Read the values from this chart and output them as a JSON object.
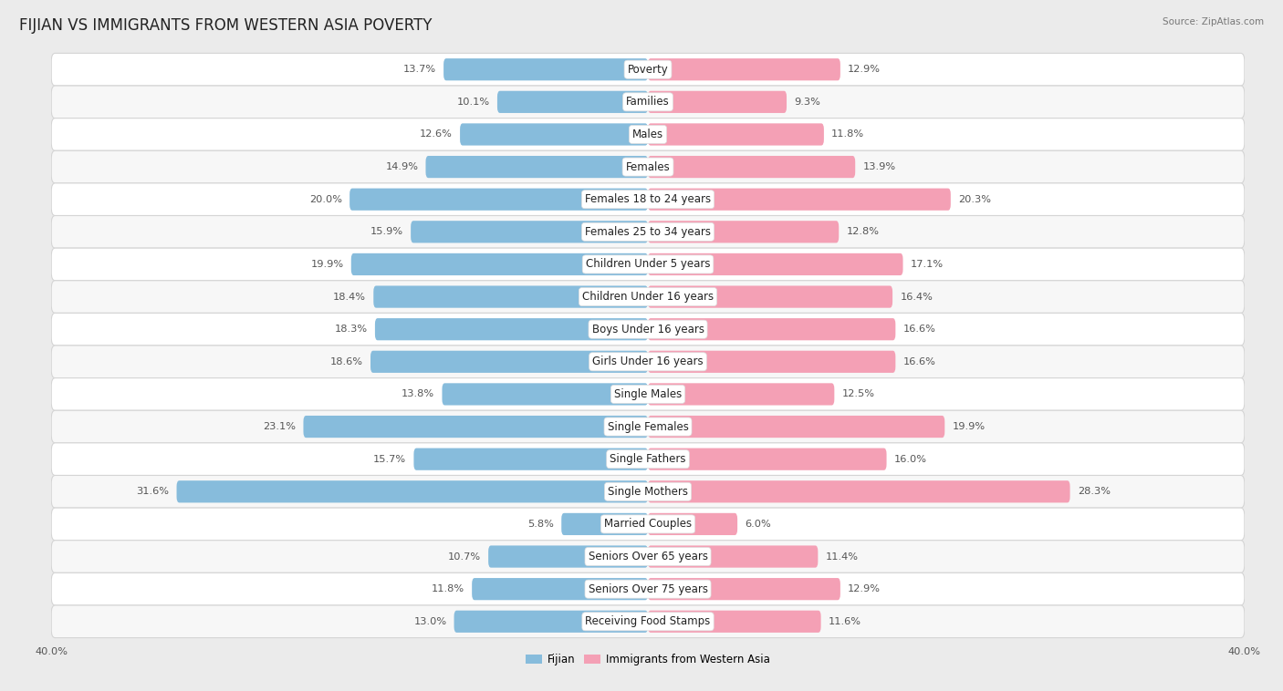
{
  "title": "FIJIAN VS IMMIGRANTS FROM WESTERN ASIA POVERTY",
  "source": "Source: ZipAtlas.com",
  "categories": [
    "Poverty",
    "Families",
    "Males",
    "Females",
    "Females 18 to 24 years",
    "Females 25 to 34 years",
    "Children Under 5 years",
    "Children Under 16 years",
    "Boys Under 16 years",
    "Girls Under 16 years",
    "Single Males",
    "Single Females",
    "Single Fathers",
    "Single Mothers",
    "Married Couples",
    "Seniors Over 65 years",
    "Seniors Over 75 years",
    "Receiving Food Stamps"
  ],
  "fijian": [
    13.7,
    10.1,
    12.6,
    14.9,
    20.0,
    15.9,
    19.9,
    18.4,
    18.3,
    18.6,
    13.8,
    23.1,
    15.7,
    31.6,
    5.8,
    10.7,
    11.8,
    13.0
  ],
  "western_asia": [
    12.9,
    9.3,
    11.8,
    13.9,
    20.3,
    12.8,
    17.1,
    16.4,
    16.6,
    16.6,
    12.5,
    19.9,
    16.0,
    28.3,
    6.0,
    11.4,
    12.9,
    11.6
  ],
  "fijian_color": "#87BCDC",
  "western_asia_color": "#F4A0B5",
  "label_color": "#555555",
  "background_color": "#ebebeb",
  "bar_background_odd": "#f7f7f7",
  "bar_background_even": "#ffffff",
  "axis_max": 40.0,
  "bar_height": 0.68,
  "title_fontsize": 12,
  "label_fontsize": 8.5,
  "value_fontsize": 8.2,
  "legend_fijian": "Fijian",
  "legend_western": "Immigrants from Western Asia"
}
